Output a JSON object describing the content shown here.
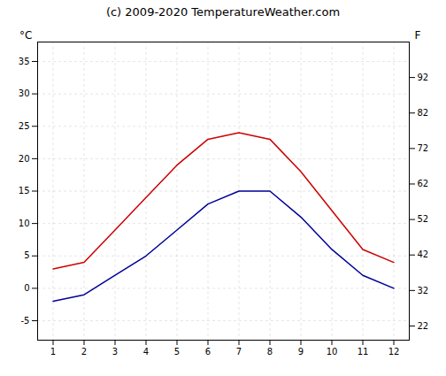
{
  "chart_data": {
    "type": "line",
    "title": "(c) 2009-2020 TemperatureWeather.com",
    "x": [
      1,
      2,
      3,
      4,
      5,
      6,
      7,
      8,
      9,
      10,
      11,
      12
    ],
    "series": [
      {
        "color": "#cc0000",
        "values": [
          3,
          4,
          9,
          14,
          19,
          23,
          24,
          23,
          18,
          12,
          6,
          4
        ]
      },
      {
        "color": "#000099",
        "values": [
          -2,
          -1,
          2,
          5,
          9,
          13,
          15,
          15,
          11,
          6,
          2,
          0
        ]
      }
    ],
    "xlim": [
      0.5,
      12.5
    ],
    "xticks": [
      1,
      2,
      3,
      4,
      5,
      6,
      7,
      8,
      9,
      10,
      11,
      12
    ],
    "ylim": [
      -8,
      38
    ],
    "yticks": [
      -5,
      0,
      5,
      10,
      15,
      20,
      25,
      30,
      35
    ],
    "y2lim": [
      18,
      102
    ],
    "y2ticks": [
      22,
      32,
      42,
      52,
      62,
      72,
      82,
      92
    ],
    "ylabel": "°C",
    "y2label": "F",
    "grid": true
  }
}
